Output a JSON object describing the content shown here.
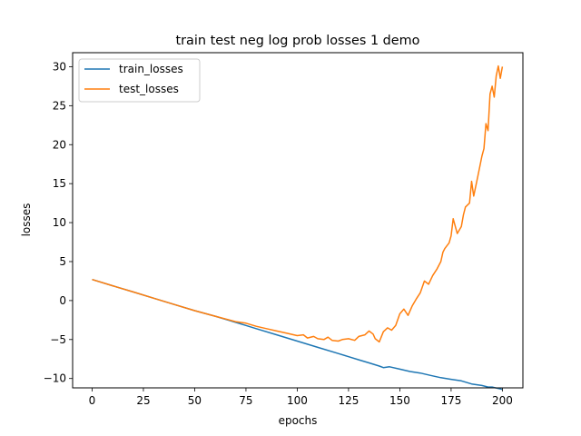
{
  "chart_data": {
    "type": "line",
    "title": "train test neg log prob losses 1 demo",
    "xlabel": "epochs",
    "ylabel": "losses",
    "xlim": [
      -9.5,
      210
    ],
    "ylim": [
      -11.2,
      31.8
    ],
    "xticks": [
      0,
      25,
      50,
      75,
      100,
      125,
      150,
      175,
      200
    ],
    "yticks": [
      -10,
      -5,
      0,
      5,
      10,
      15,
      20,
      25,
      30
    ],
    "grid": false,
    "legend_position": "upper-left",
    "series": [
      {
        "name": "train_losses",
        "color": "#1f77b4",
        "x": [
          0,
          10,
          20,
          30,
          40,
          50,
          60,
          70,
          75,
          80,
          90,
          100,
          110,
          120,
          130,
          135,
          140,
          142,
          145,
          150,
          155,
          160,
          165,
          170,
          175,
          180,
          185,
          190,
          193,
          195,
          200
        ],
        "y": [
          2.7,
          1.9,
          1.1,
          0.3,
          -0.5,
          -1.3,
          -2.0,
          -2.8,
          -3.2,
          -3.6,
          -4.4,
          -5.2,
          -6.0,
          -6.8,
          -7.6,
          -8.0,
          -8.4,
          -8.6,
          -8.5,
          -8.8,
          -9.1,
          -9.3,
          -9.6,
          -9.9,
          -10.1,
          -10.3,
          -10.7,
          -10.9,
          -11.1,
          -11.1,
          -11.4
        ]
      },
      {
        "name": "test_losses",
        "color": "#ff7f0e",
        "x": [
          0,
          10,
          20,
          30,
          40,
          50,
          60,
          70,
          75,
          80,
          85,
          90,
          95,
          100,
          103,
          105,
          108,
          110,
          113,
          115,
          117,
          120,
          122,
          125,
          128,
          130,
          133,
          135,
          137,
          138,
          140,
          142,
          144,
          146,
          148,
          150,
          152,
          154,
          156,
          158,
          160,
          162,
          164,
          166,
          168,
          170,
          171,
          172,
          174,
          175,
          176,
          178,
          180,
          181,
          182,
          184,
          185,
          186,
          188,
          190,
          191,
          192,
          193,
          194,
          195,
          196,
          197,
          198,
          199,
          200
        ],
        "y": [
          2.7,
          1.9,
          1.1,
          0.3,
          -0.5,
          -1.3,
          -2.0,
          -2.7,
          -2.9,
          -3.3,
          -3.6,
          -3.9,
          -4.2,
          -4.5,
          -4.4,
          -4.8,
          -4.6,
          -4.9,
          -5.0,
          -4.7,
          -5.1,
          -5.2,
          -5.0,
          -4.9,
          -5.1,
          -4.6,
          -4.4,
          -3.9,
          -4.3,
          -4.9,
          -5.3,
          -4.0,
          -3.5,
          -3.8,
          -3.2,
          -1.7,
          -1.1,
          -1.9,
          -0.7,
          0.2,
          1.0,
          2.5,
          2.1,
          3.2,
          4.0,
          5.0,
          6.2,
          6.7,
          7.4,
          8.3,
          10.5,
          8.6,
          9.5,
          11.0,
          12.0,
          12.5,
          15.3,
          13.4,
          15.9,
          18.5,
          19.5,
          22.7,
          21.8,
          26.5,
          27.5,
          26.1,
          28.8,
          30.1,
          28.5,
          30.0
        ]
      }
    ]
  }
}
